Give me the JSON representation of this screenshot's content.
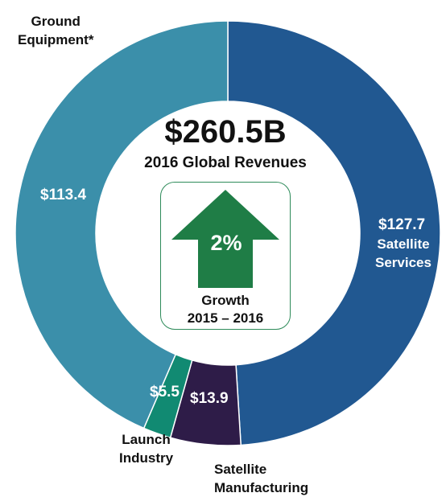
{
  "chart_data": {
    "type": "pie",
    "donut": true,
    "unit": "$B",
    "total_label": "$260.5B",
    "caption": "2016 Global Revenues",
    "growth": {
      "value": "2%",
      "label_line1": "Growth",
      "label_line2": "2015 – 2016"
    },
    "slices": [
      {
        "label_line1": "Satellite",
        "label_line2": "Services",
        "value": 127.7,
        "value_label": "$127.7",
        "color": "#215891"
      },
      {
        "label_line1": "Satellite",
        "label_line2": "Manufacturing",
        "value": 13.9,
        "value_label": "$13.9",
        "color": "#2e1c48"
      },
      {
        "label_line1": "Launch",
        "label_line2": "Industry",
        "value": 5.5,
        "value_label": "$5.5",
        "color": "#118a72"
      },
      {
        "label_line1": "Ground",
        "label_line2": "Equipment*",
        "value": 113.4,
        "value_label": "$113.4",
        "color": "#3b8faa"
      }
    ],
    "arrow_color": "#1f7d46"
  }
}
